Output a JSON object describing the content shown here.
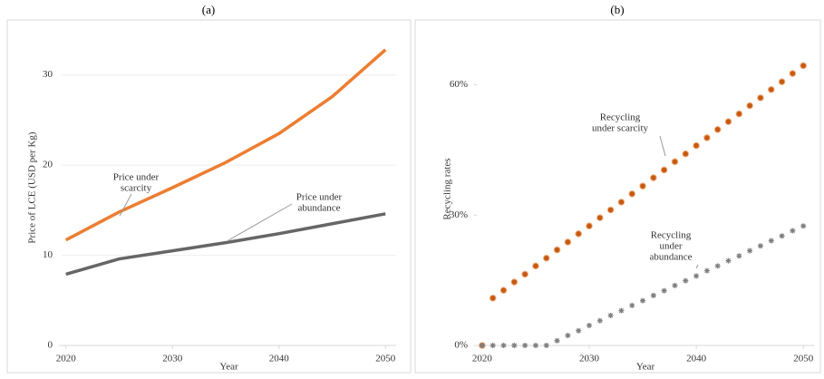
{
  "chart_data": [
    {
      "type": "line",
      "title": "(a)",
      "xlabel": "Year",
      "ylabel": "Price of LCE (USD per Kg)",
      "x": [
        2020,
        2025,
        2030,
        2035,
        2040,
        2045,
        2050
      ],
      "xlim": [
        2019.6,
        2051
      ],
      "xticks": [
        2020,
        2030,
        2040,
        2050
      ],
      "ylim": [
        0,
        35
      ],
      "yticks": [
        0,
        10,
        20,
        30
      ],
      "grid": true,
      "series": [
        {
          "name": "Price under scarcity",
          "color": "#ed7d31",
          "values": [
            11.7,
            14.8,
            17.5,
            20.3,
            23.5,
            27.6,
            32.8
          ]
        },
        {
          "name": "Price under abundance",
          "color": "#666666",
          "values": [
            7.9,
            9.6,
            10.5,
            11.4,
            12.4,
            13.5,
            14.6
          ]
        }
      ],
      "annotations": [
        {
          "lines": [
            "Price under",
            "scarcity"
          ]
        },
        {
          "lines": [
            "Price under",
            "abundance"
          ]
        }
      ]
    },
    {
      "type": "scatter",
      "title": "(b)",
      "xlabel": "Year",
      "ylabel": "Recycling rates",
      "x": [
        2020,
        2021,
        2022,
        2023,
        2024,
        2025,
        2026,
        2027,
        2028,
        2029,
        2030,
        2031,
        2032,
        2033,
        2034,
        2035,
        2036,
        2037,
        2038,
        2039,
        2040,
        2041,
        2042,
        2043,
        2044,
        2045,
        2046,
        2047,
        2048,
        2049,
        2050
      ],
      "xlim": [
        2019.5,
        2051
      ],
      "xticks": [
        2020,
        2030,
        2040,
        2050
      ],
      "ylim": [
        0,
        72
      ],
      "yticks": [
        {
          "value": 0,
          "label": "0%"
        },
        {
          "value": 30,
          "label": "30%"
        },
        {
          "value": 60,
          "label": "60%"
        }
      ],
      "grid": false,
      "series": [
        {
          "name": "Recycling under scarcity",
          "color": "#c55a11",
          "marker": "circle",
          "values": [
            0,
            10.9,
            12.7,
            14.6,
            16.4,
            18.3,
            20.1,
            22.0,
            23.8,
            25.7,
            27.5,
            29.4,
            31.2,
            33.0,
            34.9,
            36.7,
            38.6,
            40.4,
            42.3,
            44.1,
            46.0,
            47.8,
            49.7,
            51.5,
            53.3,
            55.2,
            57.0,
            58.9,
            60.7,
            62.6,
            64.4
          ]
        },
        {
          "name": "Recycling under abundance",
          "color": "#7f7f7f",
          "marker": "star",
          "values": [
            0,
            0,
            0,
            0,
            0,
            0,
            0,
            1.1,
            2.3,
            3.4,
            4.6,
            5.7,
            6.9,
            8.0,
            9.2,
            10.3,
            11.5,
            12.6,
            13.8,
            14.9,
            16.0,
            17.2,
            18.3,
            19.5,
            20.6,
            21.8,
            22.9,
            24.1,
            25.2,
            26.4,
            27.5
          ]
        }
      ],
      "annotations": [
        {
          "lines": [
            "Recycling",
            "under scarcity"
          ]
        },
        {
          "lines": [
            "Recycling",
            "under",
            "abundance"
          ]
        }
      ]
    }
  ]
}
